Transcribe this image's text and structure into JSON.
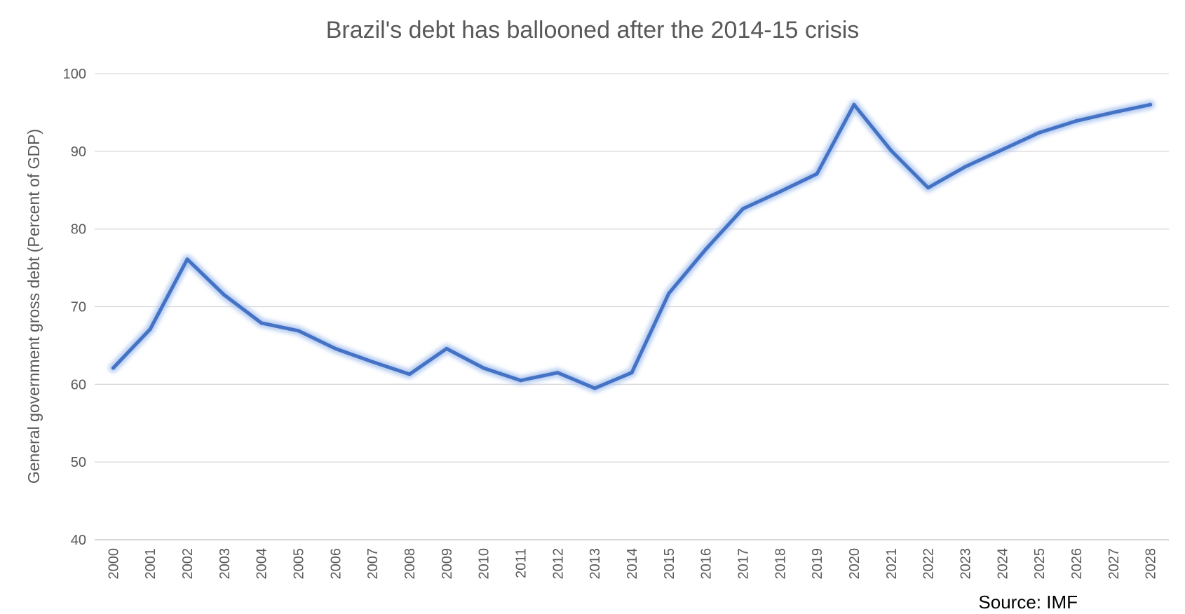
{
  "chart_data": {
    "type": "line",
    "title": "Brazil's debt has ballooned after the 2014-15 crisis",
    "ylabel": "General government gross debt (Percent of GDP)",
    "xlabel": "",
    "ylim": [
      40,
      100
    ],
    "yticks": [
      "40",
      "50",
      "60",
      "70",
      "80",
      "90",
      "100"
    ],
    "grid": true,
    "legend": "none",
    "categories": [
      "2000",
      "2001",
      "2002",
      "2003",
      "2004",
      "2005",
      "2006",
      "2007",
      "2008",
      "2009",
      "2010",
      "2011",
      "2012",
      "2013",
      "2014",
      "2015",
      "2016",
      "2017",
      "2018",
      "2019",
      "2020",
      "2021",
      "2022",
      "2023",
      "2024",
      "2025",
      "2026",
      "2027",
      "2028"
    ],
    "series": [
      {
        "values": [
          62.1,
          67.1,
          76.1,
          71.5,
          67.9,
          66.9,
          64.6,
          62.9,
          61.3,
          64.6,
          62.1,
          60.5,
          61.5,
          59.5,
          61.5,
          71.7,
          77.4,
          82.6,
          84.8,
          87.1,
          96.0,
          90.1,
          85.3,
          88.0,
          90.2,
          92.4,
          93.9,
          95.0,
          96.0
        ],
        "color": "#4472c4",
        "glow_color": "#aac4f0"
      }
    ],
    "annotations": [
      "Source: IMF"
    ]
  }
}
